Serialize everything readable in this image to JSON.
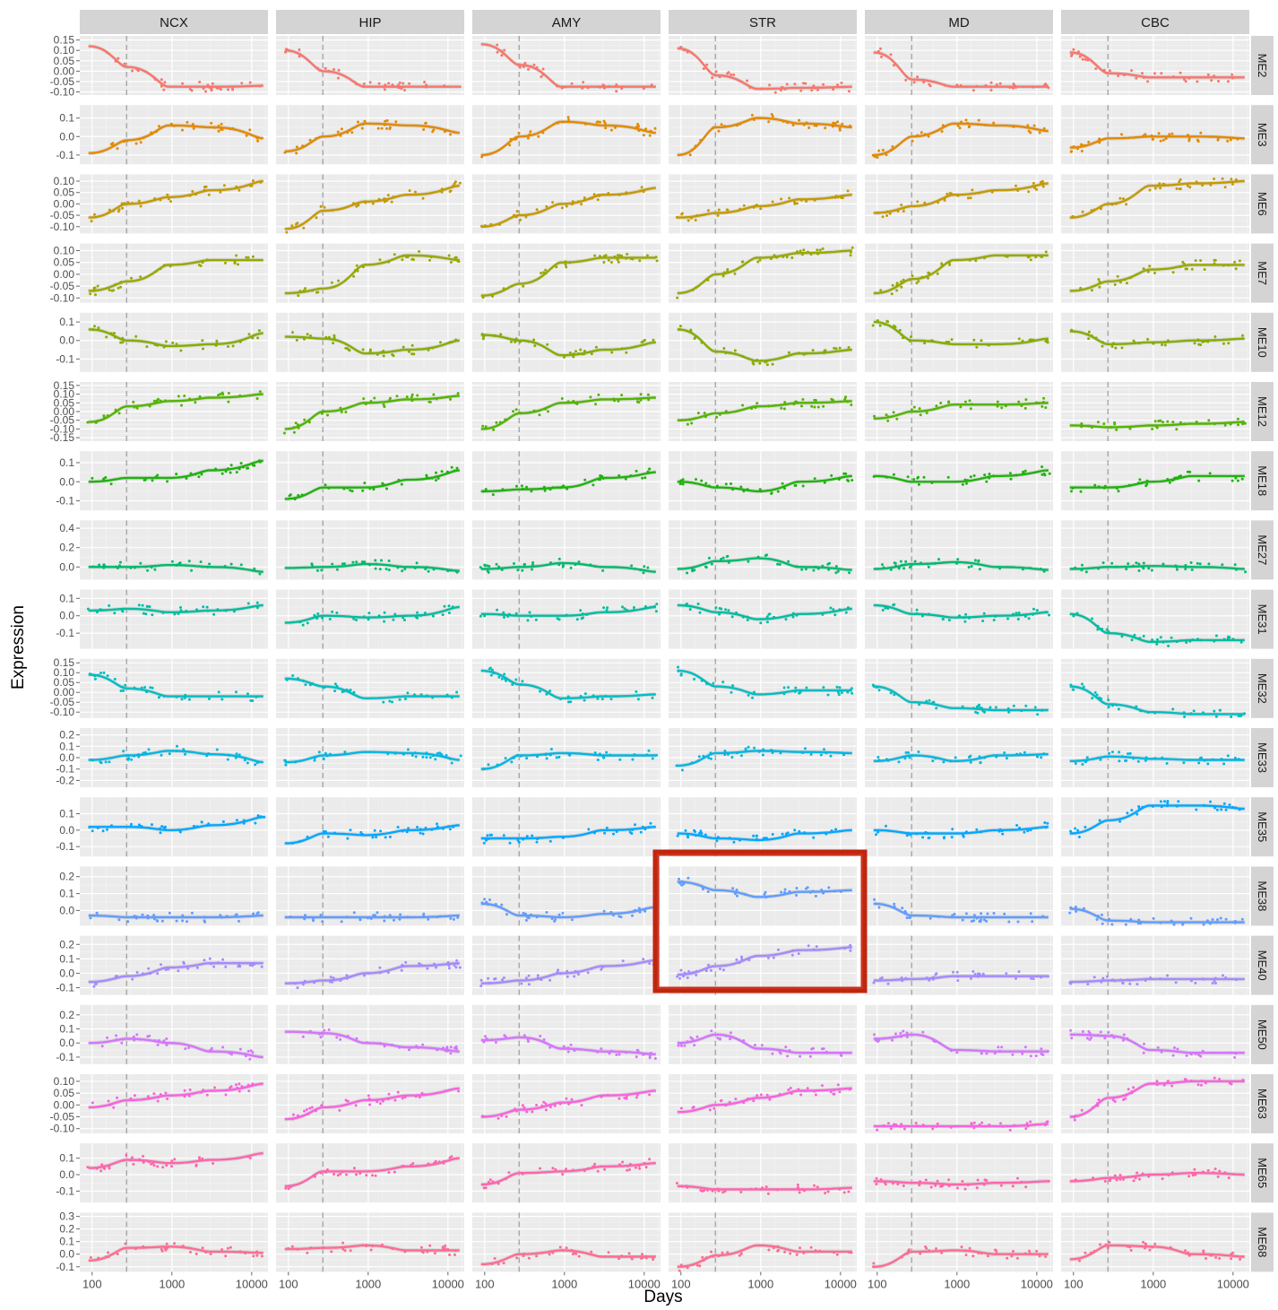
{
  "chart_data": {
    "type": "line",
    "title": "",
    "xlabel": "Days",
    "ylabel": "Expression",
    "x_scale": "log10",
    "xlim": [
      70,
      16000
    ],
    "x_ticks": [
      100,
      1000,
      10000
    ],
    "x_tick_labels": [
      "100",
      "1000",
      "10000"
    ],
    "birth_line_days": 270,
    "grid": true,
    "legend": "none",
    "columns": [
      "NCX",
      "HIP",
      "AMY",
      "STR",
      "MD",
      "CBC"
    ],
    "rows": [
      {
        "module": "ME2",
        "color": "#F8766D",
        "ticks": [
          -0.1,
          -0.05,
          0.0,
          0.05,
          0.1,
          0.15
        ],
        "tick_labels": [
          "-0.10",
          "-0.05",
          "0.00",
          "0.05",
          "0.10",
          "0.15"
        ],
        "ylim": [
          -0.115,
          0.17
        ],
        "series": [
          [
            0.12,
            0.02,
            -0.075,
            -0.075,
            -0.07
          ],
          [
            0.1,
            0.0,
            -0.075,
            -0.075,
            -0.075
          ],
          [
            0.13,
            0.03,
            -0.075,
            -0.075,
            -0.075
          ],
          [
            0.11,
            -0.02,
            -0.085,
            -0.08,
            -0.075
          ],
          [
            0.09,
            -0.04,
            -0.075,
            -0.075,
            -0.075
          ],
          [
            0.09,
            -0.01,
            -0.03,
            -0.03,
            -0.03
          ]
        ]
      },
      {
        "module": "ME3",
        "color": "#E38900",
        "ticks": [
          -0.1,
          0.0,
          0.1
        ],
        "tick_labels": [
          "-0.1",
          "0.0",
          "0.1"
        ],
        "ylim": [
          -0.15,
          0.17
        ],
        "series": [
          [
            -0.09,
            -0.02,
            0.06,
            0.05,
            -0.01
          ],
          [
            -0.08,
            0.0,
            0.07,
            0.06,
            0.02
          ],
          [
            -0.1,
            0.0,
            0.08,
            0.06,
            0.02
          ],
          [
            -0.1,
            0.05,
            0.1,
            0.07,
            0.05
          ],
          [
            -0.1,
            0.0,
            0.07,
            0.06,
            0.03
          ],
          [
            -0.06,
            -0.01,
            0.0,
            0.0,
            -0.01
          ]
        ]
      },
      {
        "module": "ME6",
        "color": "#C49A00",
        "ticks": [
          -0.1,
          -0.05,
          0.0,
          0.05,
          0.1
        ],
        "tick_labels": [
          "-0.10",
          "-0.05",
          "0.00",
          "0.05",
          "0.10"
        ],
        "ylim": [
          -0.13,
          0.13
        ],
        "series": [
          [
            -0.06,
            0.0,
            0.03,
            0.06,
            0.1
          ],
          [
            -0.11,
            -0.03,
            0.01,
            0.04,
            0.08
          ],
          [
            -0.1,
            -0.05,
            0.0,
            0.04,
            0.07
          ],
          [
            -0.06,
            -0.04,
            -0.01,
            0.02,
            0.04
          ],
          [
            -0.04,
            -0.01,
            0.04,
            0.06,
            0.09
          ],
          [
            -0.06,
            0.0,
            0.08,
            0.09,
            0.1
          ]
        ]
      },
      {
        "module": "ME7",
        "color": "#99A800",
        "ticks": [
          -0.1,
          -0.05,
          0.0,
          0.05,
          0.1
        ],
        "tick_labels": [
          "-0.10",
          "-0.05",
          "0.00",
          "0.05",
          "0.10"
        ],
        "ylim": [
          -0.12,
          0.13
        ],
        "series": [
          [
            -0.07,
            -0.03,
            0.04,
            0.06,
            0.06
          ],
          [
            -0.08,
            -0.06,
            0.04,
            0.08,
            0.06
          ],
          [
            -0.09,
            -0.04,
            0.05,
            0.07,
            0.07
          ],
          [
            -0.08,
            0.0,
            0.07,
            0.09,
            0.1
          ],
          [
            -0.08,
            -0.02,
            0.06,
            0.08,
            0.08
          ],
          [
            -0.07,
            -0.03,
            0.02,
            0.04,
            0.04
          ]
        ]
      },
      {
        "module": "ME10",
        "color": "#85AD00",
        "ticks": [
          -0.1,
          0.0,
          0.1
        ],
        "tick_labels": [
          "-0.1",
          "0.0",
          "0.1"
        ],
        "ylim": [
          -0.17,
          0.15
        ],
        "series": [
          [
            0.06,
            0.0,
            -0.03,
            -0.02,
            0.04
          ],
          [
            0.02,
            0.01,
            -0.07,
            -0.05,
            0.0
          ],
          [
            0.03,
            0.0,
            -0.08,
            -0.05,
            -0.01
          ],
          [
            0.06,
            -0.06,
            -0.11,
            -0.07,
            -0.05
          ],
          [
            0.1,
            0.0,
            -0.02,
            -0.02,
            0.01
          ],
          [
            0.05,
            -0.02,
            -0.01,
            0.0,
            0.01
          ]
        ]
      },
      {
        "module": "ME12",
        "color": "#53B400",
        "ticks": [
          -0.15,
          -0.1,
          -0.05,
          0.0,
          0.05,
          0.1,
          0.15
        ],
        "tick_labels": [
          "-0.15",
          "-0.10",
          "-0.05",
          "0.00",
          "0.05",
          "0.10",
          "0.15"
        ],
        "ylim": [
          -0.17,
          0.17
        ],
        "series": [
          [
            -0.06,
            0.03,
            0.06,
            0.08,
            0.1
          ],
          [
            -0.1,
            0.0,
            0.05,
            0.07,
            0.09
          ],
          [
            -0.1,
            -0.01,
            0.05,
            0.07,
            0.08
          ],
          [
            -0.05,
            -0.01,
            0.03,
            0.05,
            0.06
          ],
          [
            -0.04,
            0.0,
            0.04,
            0.04,
            0.05
          ],
          [
            -0.08,
            -0.09,
            -0.08,
            -0.07,
            -0.06
          ]
        ]
      },
      {
        "module": "ME18",
        "color": "#1FB30D",
        "ticks": [
          -0.1,
          0.0,
          0.1
        ],
        "tick_labels": [
          "-0.1",
          "0.0",
          "0.1"
        ],
        "ylim": [
          -0.15,
          0.16
        ],
        "series": [
          [
            0.0,
            0.02,
            0.02,
            0.06,
            0.11
          ],
          [
            -0.09,
            -0.03,
            -0.03,
            0.01,
            0.06
          ],
          [
            -0.05,
            -0.04,
            -0.03,
            0.02,
            0.05
          ],
          [
            0.0,
            -0.03,
            -0.05,
            0.0,
            0.03
          ],
          [
            0.03,
            0.0,
            0.0,
            0.03,
            0.06
          ],
          [
            -0.03,
            -0.03,
            0.0,
            0.03,
            0.03
          ]
        ]
      },
      {
        "module": "ME27",
        "color": "#00BA6C",
        "ticks": [
          0.0,
          0.2,
          0.4
        ],
        "tick_labels": [
          "0.0",
          "0.2",
          "0.4"
        ],
        "ylim": [
          -0.13,
          0.48
        ],
        "series": [
          [
            0.0,
            0.0,
            0.02,
            0.0,
            -0.05
          ],
          [
            -0.01,
            0.0,
            0.03,
            0.0,
            -0.04
          ],
          [
            -0.02,
            0.0,
            0.04,
            0.0,
            -0.05
          ],
          [
            -0.02,
            0.06,
            0.09,
            0.0,
            -0.03
          ],
          [
            -0.02,
            0.03,
            0.05,
            0.0,
            -0.03
          ],
          [
            -0.02,
            0.0,
            0.01,
            0.0,
            -0.02
          ]
        ]
      },
      {
        "module": "ME31",
        "color": "#00BDA0",
        "ticks": [
          -0.1,
          0.0,
          0.1
        ],
        "tick_labels": [
          "-0.1",
          "0.0",
          "0.1"
        ],
        "ylim": [
          -0.19,
          0.15
        ],
        "series": [
          [
            0.03,
            0.04,
            0.02,
            0.03,
            0.06
          ],
          [
            -0.04,
            0.0,
            -0.01,
            0.0,
            0.05
          ],
          [
            0.01,
            0.0,
            0.0,
            0.02,
            0.05
          ],
          [
            0.06,
            0.02,
            -0.02,
            0.01,
            0.04
          ],
          [
            0.06,
            0.01,
            -0.01,
            0.0,
            0.02
          ],
          [
            0.01,
            -0.1,
            -0.15,
            -0.14,
            -0.14
          ]
        ]
      },
      {
        "module": "ME32",
        "color": "#00BDC1",
        "ticks": [
          -0.1,
          -0.05,
          0.0,
          0.05,
          0.1,
          0.15
        ],
        "tick_labels": [
          "-0.10",
          "-0.05",
          "0.00",
          "0.05",
          "0.10",
          "0.15"
        ],
        "ylim": [
          -0.13,
          0.17
        ],
        "series": [
          [
            0.09,
            0.02,
            -0.02,
            -0.02,
            -0.02
          ],
          [
            0.07,
            0.03,
            -0.03,
            -0.02,
            -0.02
          ],
          [
            0.11,
            0.04,
            -0.03,
            -0.02,
            -0.01
          ],
          [
            0.11,
            0.03,
            -0.01,
            0.01,
            0.01
          ],
          [
            0.03,
            -0.05,
            -0.08,
            -0.09,
            -0.09
          ],
          [
            0.03,
            -0.06,
            -0.1,
            -0.11,
            -0.11
          ]
        ]
      },
      {
        "module": "ME33",
        "color": "#00B6E2",
        "ticks": [
          -0.2,
          -0.1,
          0.0,
          0.1,
          0.2
        ],
        "tick_labels": [
          "-0.2",
          "-0.1",
          "0.0",
          "0.1",
          "0.2"
        ],
        "ylim": [
          -0.26,
          0.26
        ],
        "series": [
          [
            -0.02,
            0.02,
            0.06,
            0.03,
            -0.04
          ],
          [
            -0.04,
            0.02,
            0.05,
            0.04,
            -0.02
          ],
          [
            -0.1,
            0.02,
            0.04,
            0.02,
            0.02
          ],
          [
            -0.07,
            0.04,
            0.06,
            0.05,
            0.04
          ],
          [
            -0.03,
            0.02,
            -0.03,
            0.02,
            0.03
          ],
          [
            -0.03,
            0.01,
            -0.01,
            -0.02,
            -0.02
          ]
        ]
      },
      {
        "module": "ME35",
        "color": "#00A8FF",
        "ticks": [
          -0.1,
          0.0,
          0.1
        ],
        "tick_labels": [
          "-0.1",
          "0.0",
          "0.1"
        ],
        "ylim": [
          -0.16,
          0.2
        ],
        "series": [
          [
            0.02,
            0.02,
            0.0,
            0.03,
            0.08
          ],
          [
            -0.08,
            -0.02,
            -0.03,
            0.0,
            0.03
          ],
          [
            -0.05,
            -0.05,
            -0.04,
            0.0,
            0.02
          ],
          [
            -0.02,
            -0.05,
            -0.06,
            -0.02,
            0.0
          ],
          [
            0.0,
            -0.02,
            -0.02,
            0.0,
            0.02
          ],
          [
            -0.02,
            0.06,
            0.15,
            0.15,
            0.13
          ]
        ]
      },
      {
        "module": "ME38",
        "color": "#619CFF",
        "ticks": [
          0.0,
          0.1,
          0.2
        ],
        "tick_labels": [
          "0.0",
          "0.1",
          "0.2"
        ],
        "ylim": [
          -0.09,
          0.26
        ],
        "series": [
          [
            -0.03,
            -0.04,
            -0.04,
            -0.04,
            -0.03
          ],
          [
            -0.04,
            -0.04,
            -0.04,
            -0.04,
            -0.03
          ],
          [
            0.04,
            -0.03,
            -0.04,
            -0.02,
            0.02
          ],
          [
            0.17,
            0.12,
            0.08,
            0.11,
            0.12
          ],
          [
            0.04,
            -0.03,
            -0.04,
            -0.04,
            -0.04
          ],
          [
            0.01,
            -0.06,
            -0.07,
            -0.07,
            -0.07
          ]
        ]
      },
      {
        "module": "ME40",
        "color": "#A58AFF",
        "ticks": [
          -0.1,
          0.0,
          0.1,
          0.2
        ],
        "tick_labels": [
          "-0.1",
          "0.0",
          "0.1",
          "0.2"
        ],
        "ylim": [
          -0.15,
          0.26
        ],
        "series": [
          [
            -0.06,
            -0.02,
            0.04,
            0.07,
            0.07
          ],
          [
            -0.07,
            -0.05,
            0.0,
            0.05,
            0.07
          ],
          [
            -0.07,
            -0.05,
            0.0,
            0.05,
            0.09
          ],
          [
            -0.01,
            0.05,
            0.12,
            0.16,
            0.18
          ],
          [
            -0.05,
            -0.04,
            -0.02,
            -0.02,
            -0.02
          ],
          [
            -0.06,
            -0.05,
            -0.04,
            -0.04,
            -0.04
          ]
        ]
      },
      {
        "module": "ME50",
        "color": "#D575FE",
        "ticks": [
          -0.1,
          0.0,
          0.1,
          0.2
        ],
        "tick_labels": [
          "-0.1",
          "0.0",
          "0.1",
          "0.2"
        ],
        "ylim": [
          -0.15,
          0.27
        ],
        "series": [
          [
            0.0,
            0.03,
            0.0,
            -0.06,
            -0.1
          ],
          [
            0.08,
            0.07,
            0.0,
            -0.03,
            -0.06
          ],
          [
            0.02,
            0.04,
            -0.04,
            -0.06,
            -0.08
          ],
          [
            0.0,
            0.06,
            -0.04,
            -0.07,
            -0.07
          ],
          [
            0.03,
            0.06,
            -0.05,
            -0.06,
            -0.06
          ],
          [
            0.06,
            0.05,
            -0.05,
            -0.07,
            -0.07
          ]
        ]
      },
      {
        "module": "ME63",
        "color": "#F962DD",
        "ticks": [
          -0.1,
          -0.05,
          0.0,
          0.05,
          0.1
        ],
        "tick_labels": [
          "-0.10",
          "-0.05",
          "0.00",
          "0.05",
          "0.10"
        ],
        "ylim": [
          -0.12,
          0.13
        ],
        "series": [
          [
            -0.01,
            0.02,
            0.04,
            0.06,
            0.09
          ],
          [
            -0.06,
            -0.01,
            0.02,
            0.04,
            0.07
          ],
          [
            -0.05,
            -0.02,
            0.01,
            0.04,
            0.06
          ],
          [
            -0.03,
            0.0,
            0.03,
            0.06,
            0.07
          ],
          [
            -0.09,
            -0.09,
            -0.09,
            -0.09,
            -0.08
          ],
          [
            -0.05,
            0.03,
            0.09,
            0.1,
            0.1
          ]
        ]
      },
      {
        "module": "ME65",
        "color": "#FF65AC",
        "ticks": [
          -0.1,
          0.0,
          0.1
        ],
        "tick_labels": [
          "-0.1",
          "0.0",
          "0.1"
        ],
        "ylim": [
          -0.17,
          0.19
        ],
        "series": [
          [
            0.04,
            0.09,
            0.07,
            0.09,
            0.13
          ],
          [
            -0.07,
            0.02,
            0.02,
            0.05,
            0.1
          ],
          [
            -0.06,
            0.01,
            0.02,
            0.05,
            0.07
          ],
          [
            -0.07,
            -0.09,
            -0.09,
            -0.09,
            -0.08
          ],
          [
            -0.04,
            -0.05,
            -0.06,
            -0.05,
            -0.04
          ],
          [
            -0.04,
            -0.02,
            0.0,
            0.01,
            0.0
          ]
        ]
      },
      {
        "module": "ME68",
        "color": "#FF6C91",
        "ticks": [
          -0.1,
          0.0,
          0.1,
          0.2,
          0.3
        ],
        "tick_labels": [
          "-0.1",
          "0.0",
          "0.1",
          "0.2",
          "0.3"
        ],
        "ylim": [
          -0.14,
          0.33
        ],
        "series": [
          [
            -0.05,
            0.05,
            0.06,
            0.02,
            0.01
          ],
          [
            0.04,
            0.05,
            0.07,
            0.03,
            0.03
          ],
          [
            -0.08,
            0.0,
            0.03,
            -0.02,
            -0.02
          ],
          [
            -0.1,
            -0.01,
            0.07,
            0.02,
            0.02
          ],
          [
            -0.1,
            0.02,
            0.03,
            0.0,
            0.0
          ],
          [
            -0.04,
            0.07,
            0.06,
            0.0,
            -0.02
          ]
        ]
      }
    ]
  }
}
